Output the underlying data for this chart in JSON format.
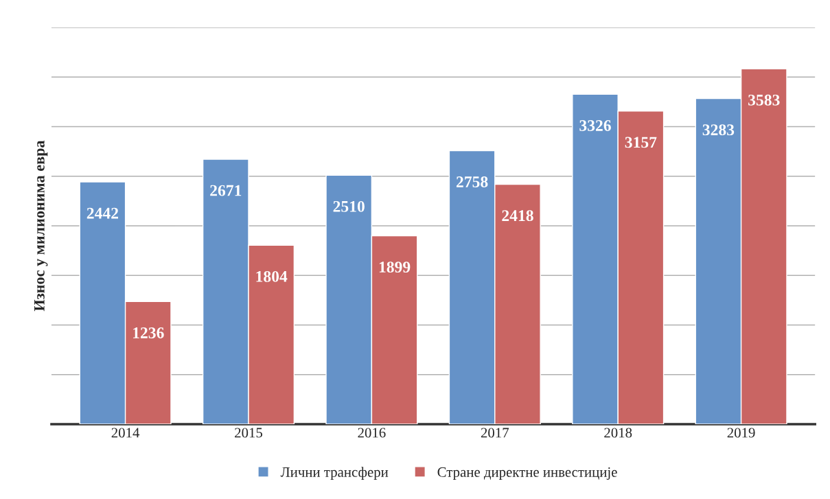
{
  "chart_data": {
    "type": "bar",
    "ylabel": "Износ у милионима евра",
    "categories": [
      "2014",
      "2015",
      "2016",
      "2017",
      "2018",
      "2019"
    ],
    "series": [
      {
        "name": "Лични трансфери",
        "color": "#6592c8",
        "values": [
          2442,
          2671,
          2510,
          2758,
          3326,
          3283
        ]
      },
      {
        "name": "Стране директне инвестиције",
        "color": "#c96563",
        "values": [
          1236,
          1804,
          1899,
          2418,
          3157,
          3583
        ]
      }
    ],
    "ylim": [
      0,
      4000
    ],
    "yticks": [
      {
        "value": 0,
        "label": null
      },
      {
        "value": 500,
        "label": null
      },
      {
        "value": 1000,
        "label": null
      },
      {
        "value": 1500,
        "label": null
      },
      {
        "value": 2000,
        "label": null
      },
      {
        "value": 2500,
        "label": null
      },
      {
        "value": 3000,
        "label": null
      },
      {
        "value": 3500,
        "label": null
      },
      {
        "value": 4000,
        "label": null
      }
    ],
    "tick_labels": "x",
    "grid": "y",
    "data_labels": true,
    "legend": "bottom"
  }
}
